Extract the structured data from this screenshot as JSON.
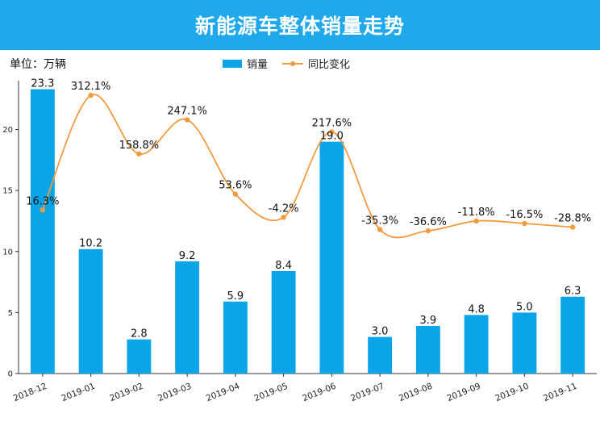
{
  "title": "新能源车整体销量走势",
  "unit_label": "单位：万辆",
  "legend": {
    "bar_label": "销量",
    "line_label": "同比变化"
  },
  "colors": {
    "title_bg": "#1fa9ea",
    "bar": "#0aa4e8",
    "line": "#f29a3c"
  },
  "chart_data": {
    "type": "bar",
    "title": "新能源车整体销量走势",
    "categories": [
      "2018-12",
      "2019-01",
      "2019-02",
      "2019-03",
      "2019-04",
      "2019-05",
      "2019-06",
      "2019-07",
      "2019-08",
      "2019-09",
      "2019-10",
      "2019-11"
    ],
    "series": [
      {
        "name": "销量",
        "type": "bar",
        "values": [
          23.3,
          10.2,
          2.8,
          9.2,
          5.9,
          8.4,
          19.0,
          3.0,
          3.9,
          4.8,
          5.0,
          6.3
        ],
        "labels": [
          "23.3",
          "10.2",
          "2.8",
          "9.2",
          "5.9",
          "8.4",
          "19.0",
          "3.0",
          "3.9",
          "4.8",
          "5.0",
          "6.3"
        ]
      },
      {
        "name": "同比变化",
        "type": "line",
        "values": [
          16.3,
          312.1,
          158.8,
          247.1,
          53.6,
          -4.2,
          217.6,
          -35.3,
          -36.6,
          -11.8,
          -16.5,
          -28.8
        ],
        "labels": [
          "16.3%",
          "312.1%",
          "158.8%",
          "247.1%",
          "53.6%",
          "-4.2%",
          "217.6%",
          "-35.3%",
          "-36.6%",
          "-11.8%",
          "-16.5%",
          "-28.8%"
        ],
        "plot_y": [
          13.4,
          22.8,
          18.0,
          20.8,
          14.7,
          12.8,
          19.8,
          11.8,
          11.7,
          12.5,
          12.3,
          12.0
        ]
      }
    ],
    "ylim": [
      0,
      24
    ],
    "yticks": [
      "0",
      "5",
      "10",
      "15",
      "20"
    ],
    "ytick_values": [
      0,
      5,
      10,
      15,
      20
    ],
    "legend_position": "top-center",
    "grid": false
  }
}
